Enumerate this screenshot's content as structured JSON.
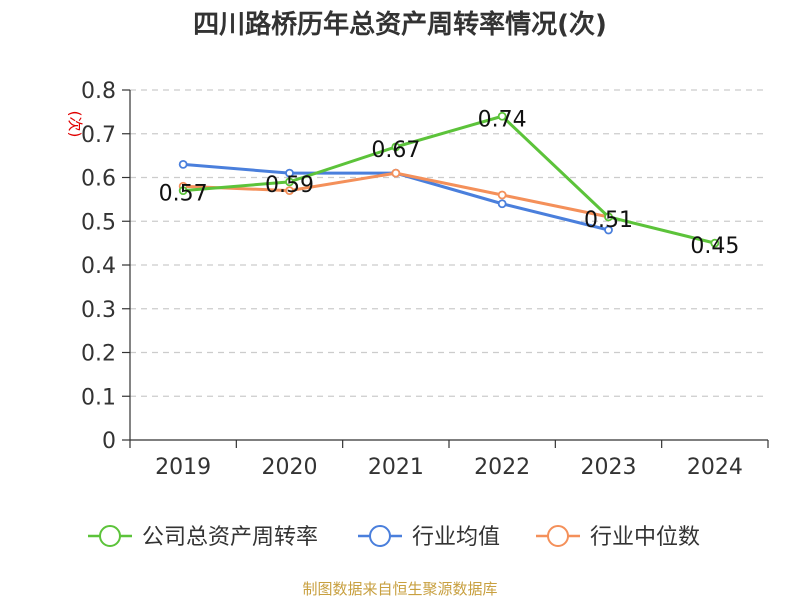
{
  "chart_data": {
    "type": "line",
    "title": "四川路桥历年总资产周转率情况(次)",
    "ylabel": "(次)",
    "xlabel": "",
    "categories": [
      "2019",
      "2020",
      "2021",
      "2022",
      "2023",
      "2024"
    ],
    "ylim": [
      0,
      0.8
    ],
    "yticks": [
      "0",
      "0.1",
      "0.2",
      "0.3",
      "0.4",
      "0.5",
      "0.6",
      "0.7",
      "0.8"
    ],
    "grid": true,
    "legend_position": "bottom",
    "series": [
      {
        "name": "公司总资产周转率",
        "color": "#5cc33a",
        "values": [
          0.57,
          0.59,
          0.67,
          0.74,
          0.51,
          0.45
        ],
        "labels": [
          "0.57",
          "0.59",
          "0.67",
          "0.74",
          "0.51",
          "0.45"
        ]
      },
      {
        "name": "行业均值",
        "color": "#4a7fdc",
        "values": [
          0.63,
          0.61,
          0.61,
          0.54,
          0.48,
          null
        ]
      },
      {
        "name": "行业中位数",
        "color": "#f4905a",
        "values": [
          0.58,
          0.57,
          0.61,
          0.56,
          0.51,
          null
        ]
      }
    ],
    "source": "制图数据来自恒生聚源数据库"
  }
}
